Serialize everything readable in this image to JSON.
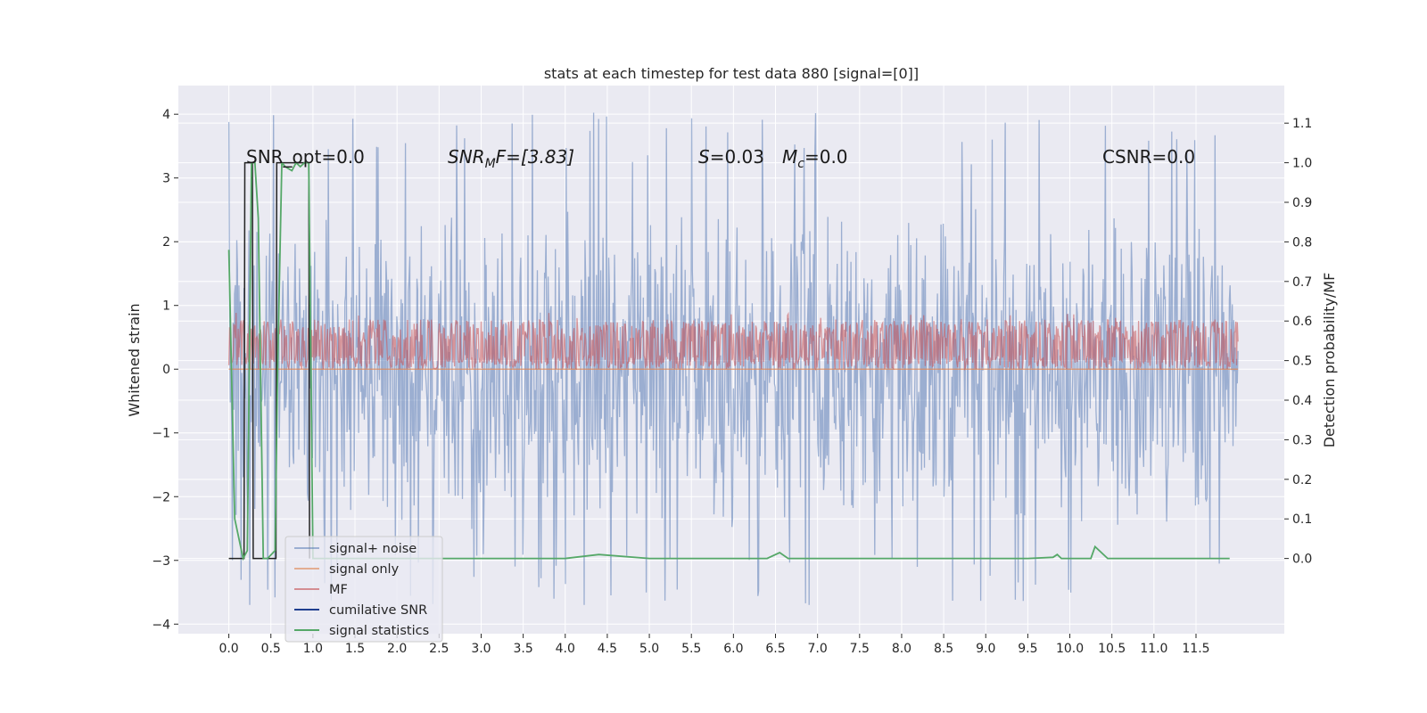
{
  "chart_data": {
    "type": "line",
    "title": "stats at each timestep for test data 880 [signal=[0]]",
    "xlabel": "",
    "ylabel_left": "Whitened strain",
    "ylabel_right": "Detection probability/MF",
    "xlim": [
      -0.6,
      12.55
    ],
    "ylim_left": [
      -4.15,
      4.45
    ],
    "ylim_right": [
      -0.19,
      1.195
    ],
    "x_ticks": [
      "0.0",
      "0.5",
      "1.0",
      "1.5",
      "2.0",
      "2.5",
      "3.0",
      "3.5",
      "4.0",
      "4.5",
      "5.0",
      "5.5",
      "6.0",
      "6.5",
      "7.0",
      "7.5",
      "8.0",
      "8.5",
      "9.0",
      "9.5",
      "10.0",
      "10.5",
      "11.0",
      "11.5"
    ],
    "y_ticks_left": [
      "−4",
      "−3",
      "−2",
      "−1",
      "0",
      "1",
      "2",
      "3",
      "4"
    ],
    "y_ticks_right": [
      "0.0",
      "0.1",
      "0.2",
      "0.3",
      "0.4",
      "0.5",
      "0.6",
      "0.7",
      "0.8",
      "0.9",
      "1.0",
      "1.1"
    ],
    "grid": true,
    "legend_position": "lower-left",
    "colors": {
      "background": "#eaeaf2",
      "grid": "#ffffff",
      "signal_noise": "#4c72b0",
      "signal_only": "#dd8452",
      "mf": "#c44e52",
      "cumulative_snr": "#1f3f8f",
      "signal_statistics": "#55a868"
    },
    "annotations": {
      "snr_opt": "SNR_opt=0.0",
      "snr_mf_main": "SNR",
      "snr_mf_sub": "M",
      "snr_mf_rest": "F=[3.83]",
      "s_var": "S",
      "s_val": "=0.03",
      "mc_var": "M",
      "mc_sub": "c",
      "mc_val": "=0.0",
      "csnr": "CSNR=0.0"
    },
    "series": [
      {
        "name": "signal+ noise",
        "kind": "noise",
        "x_range": [
          0.0,
          12.0
        ],
        "envelope_left": [
          -2.5,
          2.6
        ],
        "extremes_left": [
          -3.7,
          4.1
        ]
      },
      {
        "name": "signal only",
        "kind": "flat",
        "value_left": 0.0
      },
      {
        "name": "MF",
        "kind": "mf_band",
        "x_range": [
          0.0,
          12.0
        ],
        "band_left": [
          0.0,
          0.78
        ]
      },
      {
        "name": "cumilative SNR",
        "kind": "steps",
        "x": [
          0.0,
          0.18,
          0.19,
          0.28,
          0.29,
          0.56,
          0.57,
          0.95,
          0.96
        ],
        "y_right": [
          0.0,
          0.0,
          1.0,
          1.0,
          0.0,
          0.0,
          1.0,
          1.0,
          0.0
        ]
      },
      {
        "name": "signal statistics",
        "kind": "line",
        "x": [
          0.0,
          0.07,
          0.17,
          0.22,
          0.27,
          0.31,
          0.35,
          0.41,
          0.46,
          0.55,
          0.58,
          0.63,
          0.67,
          0.75,
          0.8,
          0.85,
          0.9,
          0.95,
          1.0,
          1.5,
          2.0,
          3.0,
          4.0,
          4.4,
          5.0,
          6.0,
          6.4,
          6.55,
          6.65,
          7.0,
          8.0,
          8.8,
          9.0,
          9.5,
          9.8,
          9.85,
          9.9,
          10.0,
          10.25,
          10.3,
          10.45,
          10.5,
          11.0,
          11.9
        ],
        "y_right": [
          0.78,
          0.1,
          0.0,
          0.02,
          1.0,
          1.0,
          0.86,
          0.0,
          0.0,
          0.02,
          0.48,
          1.0,
          0.99,
          0.98,
          1.0,
          0.99,
          1.0,
          1.0,
          0.0,
          0.0,
          0.0,
          0.0,
          0.0,
          0.01,
          0.0,
          0.0,
          0.0,
          0.015,
          0.0,
          0.0,
          0.0,
          0.0,
          0.0,
          0.0,
          0.003,
          0.01,
          0.0,
          0.0,
          0.0,
          0.03,
          0.0,
          0.0,
          0.0,
          0.0
        ]
      }
    ]
  }
}
